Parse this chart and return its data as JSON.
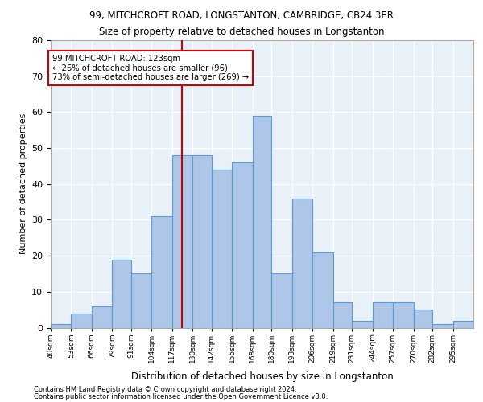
{
  "title1": "99, MITCHCROFT ROAD, LONGSTANTON, CAMBRIDGE, CB24 3ER",
  "title2": "Size of property relative to detached houses in Longstanton",
  "xlabel": "Distribution of detached houses by size in Longstanton",
  "ylabel": "Number of detached properties",
  "bar_heights": [
    1,
    4,
    6,
    19,
    15,
    31,
    48,
    48,
    44,
    46,
    59,
    15,
    36,
    21,
    7,
    2,
    7,
    7,
    5,
    1,
    2
  ],
  "bin_labels": [
    "40sqm",
    "53sqm",
    "66sqm",
    "79sqm",
    "91sqm",
    "104sqm",
    "117sqm",
    "130sqm",
    "142sqm",
    "155sqm",
    "168sqm",
    "180sqm",
    "193sqm",
    "206sqm",
    "219sqm",
    "231sqm",
    "244sqm",
    "257sqm",
    "270sqm",
    "282sqm",
    "295sqm"
  ],
  "bin_edges": [
    40,
    53,
    66,
    79,
    91,
    104,
    117,
    130,
    142,
    155,
    168,
    180,
    193,
    206,
    219,
    231,
    244,
    257,
    270,
    282,
    295,
    308
  ],
  "bar_color": "#aec6e8",
  "bar_edge_color": "#5b9bd5",
  "bg_color": "#e8f0f8",
  "grid_color": "#ffffff",
  "property_size": 123,
  "property_label": "99 MITCHCROFT ROAD: 123sqm",
  "ann_line1": "← 26% of detached houses are smaller (96)",
  "ann_line2": "73% of semi-detached houses are larger (269) →",
  "vline_color": "#cc0000",
  "ann_box_color": "#ffffff",
  "ann_box_edge": "#cc0000",
  "footer1": "Contains HM Land Registry data © Crown copyright and database right 2024.",
  "footer2": "Contains public sector information licensed under the Open Government Licence v3.0.",
  "ylim": [
    0,
    80
  ],
  "yticks": [
    0,
    10,
    20,
    30,
    40,
    50,
    60,
    70,
    80
  ]
}
